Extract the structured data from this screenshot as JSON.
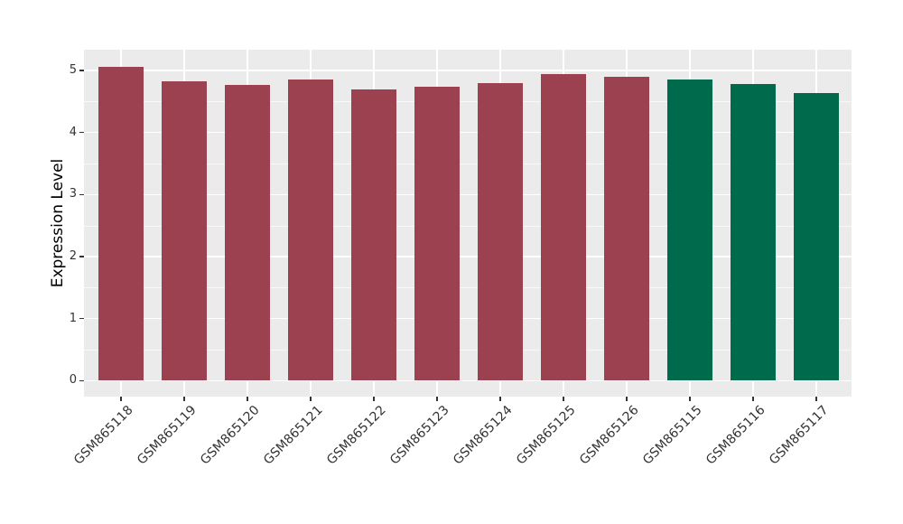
{
  "chart_data": {
    "type": "bar",
    "title": "",
    "xlabel": "",
    "ylabel": "Expression Level",
    "categories": [
      "GSM865118",
      "GSM865119",
      "GSM865120",
      "GSM865121",
      "GSM865122",
      "GSM865123",
      "GSM865124",
      "GSM865125",
      "GSM865126",
      "GSM865115",
      "GSM865116",
      "GSM865117"
    ],
    "values": [
      5.06,
      4.83,
      4.76,
      4.85,
      4.7,
      4.74,
      4.79,
      4.94,
      4.9,
      4.85,
      4.78,
      4.63
    ],
    "bar_colors": [
      "#9B4150",
      "#9B4150",
      "#9B4150",
      "#9B4150",
      "#9B4150",
      "#9B4150",
      "#9B4150",
      "#9B4150",
      "#9B4150",
      "#006B4C",
      "#006B4C",
      "#006B4C"
    ],
    "yticks": [
      0,
      1,
      2,
      3,
      4,
      5
    ],
    "yticks_minor": [
      0.5,
      1.5,
      2.5,
      3.5,
      4.5
    ],
    "ylim": [
      -0.26,
      5.33
    ],
    "grid": true,
    "legend": "none",
    "panel_background": "#EBEBEB",
    "gridline_color": "#FFFFFF",
    "axis_text_color": "#333333"
  }
}
